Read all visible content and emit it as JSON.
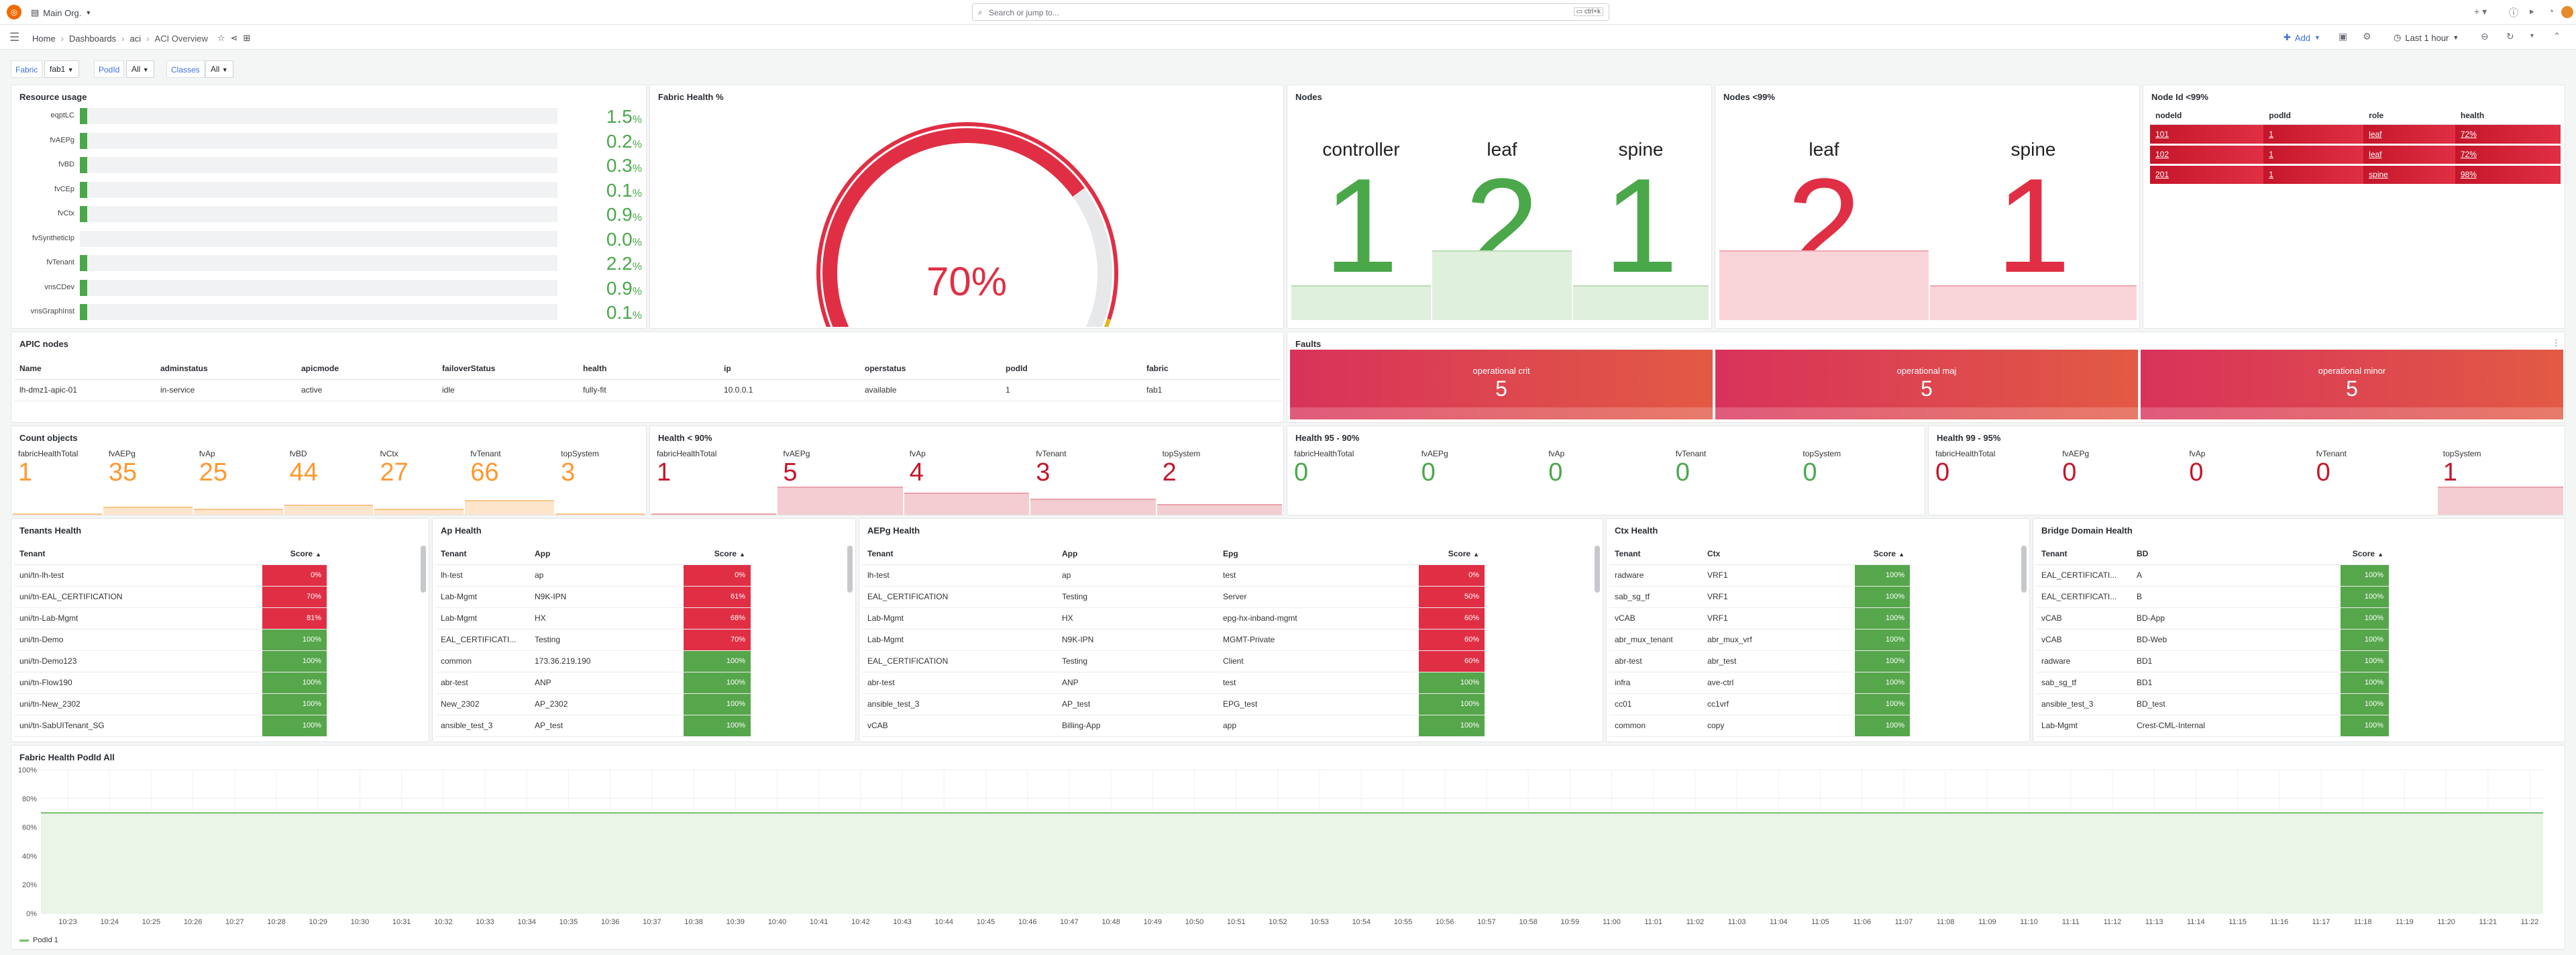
{
  "topbar": {
    "org": "Main Org.",
    "search_placeholder": "Search or jump to...",
    "shortcut": "ctrl+k"
  },
  "navbar": {
    "breadcrumbs": [
      "Home",
      "Dashboards",
      "aci",
      "ACI Overview"
    ],
    "add_label": "Add",
    "time_range": "Last 1 hour"
  },
  "variables": [
    {
      "label": "Fabric",
      "value": "fab1"
    },
    {
      "label": "PodId",
      "value": "All"
    },
    {
      "label": "Classes",
      "value": "All"
    }
  ],
  "resource_usage": {
    "title": "Resource usage",
    "rows": [
      {
        "name": "eqptLC",
        "value": "1.5",
        "unit": "%",
        "fraction": 0.015
      },
      {
        "name": "fvAEPg",
        "value": "0.2",
        "unit": "%",
        "fraction": 0.002
      },
      {
        "name": "fvBD",
        "value": "0.3",
        "unit": "%",
        "fraction": 0.003
      },
      {
        "name": "fvCEp",
        "value": "0.1",
        "unit": "%",
        "fraction": 0.001
      },
      {
        "name": "fvCtx",
        "value": "0.9",
        "unit": "%",
        "fraction": 0.009
      },
      {
        "name": "fvSyntheticIp",
        "value": "0.0",
        "unit": "%",
        "fraction": 0.0
      },
      {
        "name": "fvTenant",
        "value": "2.2",
        "unit": "%",
        "fraction": 0.022
      },
      {
        "name": "vnsCDev",
        "value": "0.9",
        "unit": "%",
        "fraction": 0.009
      },
      {
        "name": "vnsGraphInst",
        "value": "0.1",
        "unit": "%",
        "fraction": 0.001
      }
    ]
  },
  "fabric_health": {
    "title": "Fabric Health %",
    "value_label": "70%",
    "value": 70
  },
  "nodes": {
    "title": "Nodes",
    "items": [
      {
        "label": "controller",
        "value": "1"
      },
      {
        "label": "leaf",
        "value": "2"
      },
      {
        "label": "spine",
        "value": "1"
      }
    ]
  },
  "nodes99": {
    "title": "Nodes <99%",
    "items": [
      {
        "label": "leaf",
        "value": "2"
      },
      {
        "label": "spine",
        "value": "1"
      }
    ]
  },
  "nodeid99": {
    "title": "Node Id <99%",
    "headers": [
      "nodeId",
      "podId",
      "role",
      "health"
    ],
    "rows": [
      [
        "101",
        "1",
        "leaf",
        "72%"
      ],
      [
        "102",
        "1",
        "leaf",
        "72%"
      ],
      [
        "201",
        "1",
        "spine",
        "98%"
      ]
    ]
  },
  "apic": {
    "title": "APIC nodes",
    "headers": [
      "Name",
      "adminstatus",
      "apicmode",
      "failoverStatus",
      "health",
      "ip",
      "operstatus",
      "podId",
      "fabric"
    ],
    "rows": [
      [
        "lh-dmz1-apic-01",
        "in-service",
        "active",
        "idle",
        "fully-fit",
        "10.0.0.1",
        "available",
        "1",
        "fab1"
      ]
    ]
  },
  "faults": {
    "title": "Faults",
    "items": [
      {
        "label": "operational crit",
        "value": "5"
      },
      {
        "label": "operational maj",
        "value": "5"
      },
      {
        "label": "operational minor",
        "value": "5"
      }
    ]
  },
  "count_objects": {
    "title": "Count objects",
    "items": [
      {
        "label": "fabricHealthTotal",
        "value": "1"
      },
      {
        "label": "fvAEPg",
        "value": "35"
      },
      {
        "label": "fvAp",
        "value": "25"
      },
      {
        "label": "fvBD",
        "value": "44"
      },
      {
        "label": "fvCtx",
        "value": "27"
      },
      {
        "label": "fvTenant",
        "value": "66"
      },
      {
        "label": "topSystem",
        "value": "3"
      }
    ]
  },
  "health90": {
    "title": "Health < 90%",
    "items": [
      {
        "label": "fabricHealthTotal",
        "value": "1"
      },
      {
        "label": "fvAEPg",
        "value": "5"
      },
      {
        "label": "fvAp",
        "value": "4"
      },
      {
        "label": "fvTenant",
        "value": "3"
      },
      {
        "label": "topSystem",
        "value": "2"
      }
    ]
  },
  "health9590": {
    "title": "Health 95 - 90%",
    "items": [
      {
        "label": "fabricHealthTotal",
        "value": "0"
      },
      {
        "label": "fvAEPg",
        "value": "0"
      },
      {
        "label": "fvAp",
        "value": "0"
      },
      {
        "label": "fvTenant",
        "value": "0"
      },
      {
        "label": "topSystem",
        "value": "0"
      }
    ]
  },
  "health9995": {
    "title": "Health 99 - 95%",
    "items": [
      {
        "label": "fabricHealthTotal",
        "value": "0"
      },
      {
        "label": "fvAEPg",
        "value": "0"
      },
      {
        "label": "fvAp",
        "value": "0"
      },
      {
        "label": "fvTenant",
        "value": "0"
      },
      {
        "label": "topSystem",
        "value": "1"
      }
    ]
  },
  "tenants_health": {
    "title": "Tenants Health",
    "headers": [
      "Tenant",
      "Score"
    ],
    "rows": [
      [
        "uni/tn-lh-test",
        "0%"
      ],
      [
        "uni/tn-EAL_CERTIFICATION",
        "70%"
      ],
      [
        "uni/tn-Lab-Mgmt",
        "81%"
      ],
      [
        "uni/tn-Demo",
        "100%"
      ],
      [
        "uni/tn-Demo123",
        "100%"
      ],
      [
        "uni/tn-Flow190",
        "100%"
      ],
      [
        "uni/tn-New_2302",
        "100%"
      ],
      [
        "uni/tn-SabUITenant_SG",
        "100%"
      ]
    ]
  },
  "ap_health": {
    "title": "Ap Health",
    "headers": [
      "Tenant",
      "App",
      "Score"
    ],
    "rows": [
      [
        "lh-test",
        "ap",
        "0%"
      ],
      [
        "Lab-Mgmt",
        "N9K-IPN",
        "61%"
      ],
      [
        "Lab-Mgmt",
        "HX",
        "68%"
      ],
      [
        "EAL_CERTIFICATI...",
        "Testing",
        "70%"
      ],
      [
        "common",
        "173.36.219.190",
        "100%"
      ],
      [
        "abr-test",
        "ANP",
        "100%"
      ],
      [
        "New_2302",
        "AP_2302",
        "100%"
      ],
      [
        "ansible_test_3",
        "AP_test",
        "100%"
      ]
    ]
  },
  "aepg_health": {
    "title": "AEPg Health",
    "headers": [
      "Tenant",
      "App",
      "Epg",
      "Score"
    ],
    "rows": [
      [
        "lh-test",
        "ap",
        "test",
        "0%"
      ],
      [
        "EAL_CERTIFICATION",
        "Testing",
        "Server",
        "50%"
      ],
      [
        "Lab-Mgmt",
        "HX",
        "epg-hx-inband-mgmt",
        "60%"
      ],
      [
        "Lab-Mgmt",
        "N9K-IPN",
        "MGMT-Private",
        "60%"
      ],
      [
        "EAL_CERTIFICATION",
        "Testing",
        "Client",
        "60%"
      ],
      [
        "abr-test",
        "ANP",
        "test",
        "100%"
      ],
      [
        "ansible_test_3",
        "AP_test",
        "EPG_test",
        "100%"
      ],
      [
        "vCAB",
        "Billing-App",
        "app",
        "100%"
      ]
    ]
  },
  "ctx_health": {
    "title": "Ctx Health",
    "headers": [
      "Tenant",
      "Ctx",
      "Score"
    ],
    "rows": [
      [
        "radware",
        "VRF1",
        "100%"
      ],
      [
        "sab_sg_tf",
        "VRF1",
        "100%"
      ],
      [
        "vCAB",
        "VRF1",
        "100%"
      ],
      [
        "abr_mux_tenant",
        "abr_mux_vrf",
        "100%"
      ],
      [
        "abr-test",
        "abr_test",
        "100%"
      ],
      [
        "infra",
        "ave-ctrl",
        "100%"
      ],
      [
        "cc01",
        "cc1vrf",
        "100%"
      ],
      [
        "common",
        "copy",
        "100%"
      ]
    ]
  },
  "bd_health": {
    "title": "Bridge Domain Health",
    "headers": [
      "Tenant",
      "BD",
      "Score"
    ],
    "rows": [
      [
        "EAL_CERTIFICATI...",
        "A",
        "100%"
      ],
      [
        "EAL_CERTIFICATI...",
        "B",
        "100%"
      ],
      [
        "vCAB",
        "BD-App",
        "100%"
      ],
      [
        "vCAB",
        "BD-Web",
        "100%"
      ],
      [
        "radware",
        "BD1",
        "100%"
      ],
      [
        "sab_sg_tf",
        "BD1",
        "100%"
      ],
      [
        "ansible_test_3",
        "BD_test",
        "100%"
      ],
      [
        "Lab-Mgmt",
        "Crest-CML-Internal",
        "100%"
      ]
    ]
  },
  "chart_data": {
    "type": "line",
    "title": "Fabric Health PodId All",
    "ylim": [
      0,
      100
    ],
    "yticks": [
      "0%",
      "20%",
      "40%",
      "60%",
      "80%",
      "100%"
    ],
    "x": [
      "10:23",
      "10:24",
      "10:25",
      "10:26",
      "10:27",
      "10:28",
      "10:29",
      "10:30",
      "10:31",
      "10:32",
      "10:33",
      "10:34",
      "10:35",
      "10:36",
      "10:37",
      "10:38",
      "10:39",
      "10:40",
      "10:41",
      "10:42",
      "10:43",
      "10:44",
      "10:45",
      "10:46",
      "10:47",
      "10:48",
      "10:49",
      "10:50",
      "10:51",
      "10:52",
      "10:53",
      "10:54",
      "10:55",
      "10:56",
      "10:57",
      "10:58",
      "10:59",
      "11:00",
      "11:01",
      "11:02",
      "11:03",
      "11:04",
      "11:05",
      "11:06",
      "11:07",
      "11:08",
      "11:09",
      "11:10",
      "11:11",
      "11:12",
      "11:13",
      "11:14",
      "11:15",
      "11:16",
      "11:17",
      "11:18",
      "11:19",
      "11:20",
      "11:21",
      "11:22"
    ],
    "series": [
      {
        "name": "PodId 1",
        "value": 70
      }
    ],
    "grid": true,
    "legend": "bottom-left",
    "color": "#73bf69"
  }
}
